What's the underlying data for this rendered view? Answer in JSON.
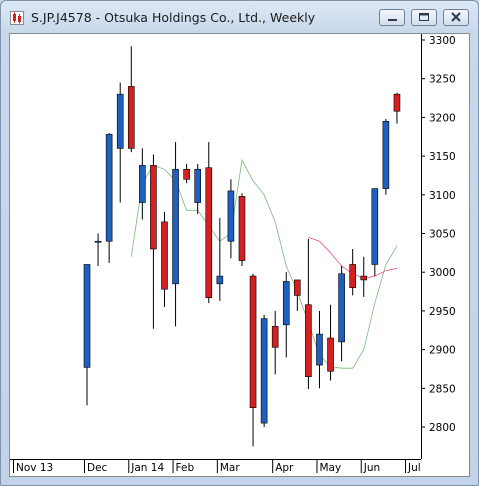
{
  "window": {
    "title": "S.JP.J4578 - Otsuka Holdings Co., Ltd., Weekly",
    "icon": "chart-app-icon",
    "buttons": [
      "minimize-icon",
      "maximize-icon",
      "close-icon"
    ]
  },
  "chart_data": {
    "type": "candlestick",
    "title": "",
    "xlabel": "",
    "ylabel": "",
    "ylim": [
      2760,
      3310
    ],
    "grid": false,
    "legend": "none",
    "colors": {
      "up": "#1f5fbf",
      "down": "#d42020",
      "ma_fast": "#e0508a",
      "ma_slow": "#7ab87a"
    },
    "y_ticks": [
      2800,
      2850,
      2900,
      2950,
      3000,
      3050,
      3100,
      3150,
      3200,
      3250,
      3300
    ],
    "x_ticks": [
      {
        "label": "Nov 13",
        "index": -1
      },
      {
        "label": "Dec",
        "index": 0
      },
      {
        "label": "Jan 14",
        "index": 4
      },
      {
        "label": "Feb",
        "index": 8
      },
      {
        "label": "Mar",
        "index": 12
      },
      {
        "label": "Apr",
        "index": 17
      },
      {
        "label": "May",
        "index": 21
      },
      {
        "label": "Jun",
        "index": 25
      },
      {
        "label": "Jul",
        "index": 29
      }
    ],
    "candles": [
      {
        "o": 2877,
        "h": 3010,
        "l": 2828,
        "c": 3010
      },
      {
        "o": 3040,
        "h": 3050,
        "l": 3008,
        "c": 3040
      },
      {
        "o": 3040,
        "h": 3180,
        "l": 3012,
        "c": 3178
      },
      {
        "o": 3160,
        "h": 3245,
        "l": 3090,
        "c": 3230
      },
      {
        "o": 3240,
        "h": 3292,
        "l": 3155,
        "c": 3160
      },
      {
        "o": 3090,
        "h": 3160,
        "l": 3068,
        "c": 3138
      },
      {
        "o": 3138,
        "h": 3152,
        "l": 2927,
        "c": 3030
      },
      {
        "o": 3065,
        "h": 3078,
        "l": 2955,
        "c": 2978
      },
      {
        "o": 2985,
        "h": 3168,
        "l": 2930,
        "c": 3133
      },
      {
        "o": 3133,
        "h": 3140,
        "l": 3115,
        "c": 3120
      },
      {
        "o": 3090,
        "h": 3140,
        "l": 3075,
        "c": 3133
      },
      {
        "o": 3135,
        "h": 3168,
        "l": 2960,
        "c": 2967
      },
      {
        "o": 2985,
        "h": 3070,
        "l": 2963,
        "c": 2995
      },
      {
        "o": 3040,
        "h": 3120,
        "l": 3018,
        "c": 3105
      },
      {
        "o": 3098,
        "h": 3102,
        "l": 3008,
        "c": 3015
      },
      {
        "o": 2995,
        "h": 2998,
        "l": 2775,
        "c": 2825
      },
      {
        "o": 2805,
        "h": 2945,
        "l": 2800,
        "c": 2940
      },
      {
        "o": 2930,
        "h": 2950,
        "l": 2868,
        "c": 2903
      },
      {
        "o": 2932,
        "h": 3000,
        "l": 2890,
        "c": 2988
      },
      {
        "o": 2990,
        "h": 2990,
        "l": 2950,
        "c": 2970
      },
      {
        "o": 2958,
        "h": 3043,
        "l": 2849,
        "c": 2865
      },
      {
        "o": 2880,
        "h": 2950,
        "l": 2850,
        "c": 2920
      },
      {
        "o": 2915,
        "h": 2958,
        "l": 2860,
        "c": 2872
      },
      {
        "o": 2910,
        "h": 3008,
        "l": 2885,
        "c": 2998
      },
      {
        "o": 3010,
        "h": 3030,
        "l": 2970,
        "c": 2980
      },
      {
        "o": 2995,
        "h": 3020,
        "l": 2968,
        "c": 2990
      },
      {
        "o": 3010,
        "h": 3108,
        "l": 2995,
        "c": 3108
      },
      {
        "o": 3108,
        "h": 3198,
        "l": 3100,
        "c": 3195
      },
      {
        "o": 3230,
        "h": 3232,
        "l": 3192,
        "c": 3208
      }
    ],
    "ma_fast": [
      null,
      null,
      null,
      null,
      null,
      null,
      null,
      null,
      null,
      null,
      null,
      null,
      null,
      null,
      null,
      null,
      null,
      null,
      null,
      null,
      3045,
      3040,
      3025,
      3008,
      2998,
      2992,
      2995,
      3002,
      3005
    ],
    "ma_slow": [
      null,
      null,
      null,
      null,
      3020,
      3115,
      3138,
      3133,
      3118,
      3080,
      3080,
      3060,
      3040,
      3050,
      3145,
      3118,
      3100,
      3065,
      3008,
      2975,
      2935,
      2893,
      2878,
      2876,
      2876,
      2900,
      2960,
      3010,
      3034
    ]
  }
}
